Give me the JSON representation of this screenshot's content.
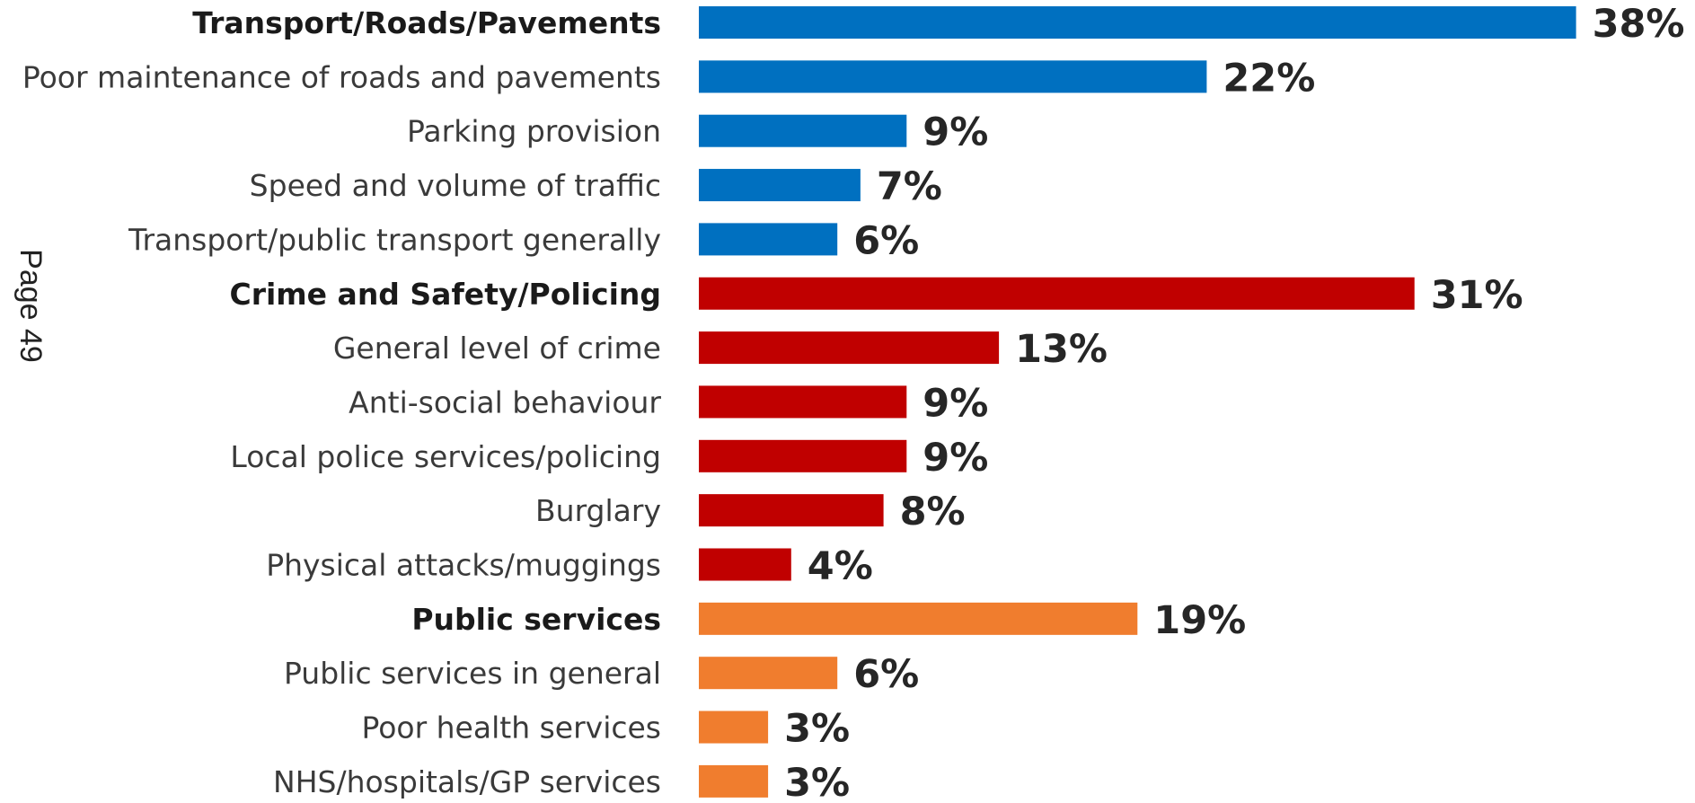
{
  "page_marker": "Page 49",
  "colors": {
    "transport": "#0070C0",
    "crime": "#C00000",
    "public_services": "#F07D2E"
  },
  "chart_data": {
    "type": "bar",
    "orientation": "horizontal",
    "title": "",
    "xlabel": "",
    "ylabel": "",
    "xlim": [
      0,
      40
    ],
    "grid": false,
    "legend": "none",
    "categories": [
      "Transport/Roads/Pavements",
      "Poor maintenance of roads and pavements",
      "Parking provision",
      "Speed and volume of traffic",
      "Transport/public transport generally",
      "Crime and Safety/Policing",
      "General level of crime",
      "Anti-social behaviour",
      "Local police services/policing",
      "Burglary",
      "Physical attacks/muggings",
      "Public services",
      "Public services in general",
      "Poor health services",
      "NHS/hospitals/GP services"
    ],
    "values": [
      38,
      22,
      9,
      7,
      6,
      31,
      13,
      9,
      9,
      8,
      4,
      19,
      6,
      3,
      3
    ],
    "value_labels": [
      "38%",
      "22%",
      "9%",
      "7%",
      "6%",
      "31%",
      "13%",
      "9%",
      "9%",
      "8%",
      "4%",
      "19%",
      "6%",
      "3%",
      "3%"
    ],
    "groups": [
      "transport",
      "transport",
      "transport",
      "transport",
      "transport",
      "crime",
      "crime",
      "crime",
      "crime",
      "crime",
      "crime",
      "public_services",
      "public_services",
      "public_services",
      "public_services"
    ],
    "headings": [
      true,
      false,
      false,
      false,
      false,
      true,
      false,
      false,
      false,
      false,
      false,
      true,
      false,
      false,
      false
    ]
  }
}
